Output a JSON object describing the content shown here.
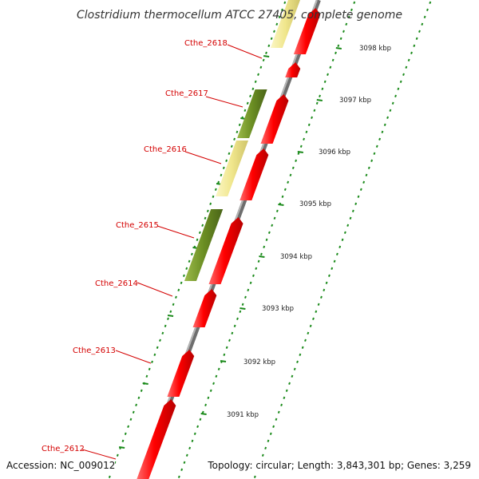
{
  "title": "Clostridium thermocellum ATCC 27405, complete genome",
  "footer": {
    "accession": "Accession: NC_009012",
    "topology": "Topology: circular; Length: 3,843,301 bp; Genes: 3,259"
  },
  "colors": {
    "backbone": "#8c8c8c",
    "forward_cds": "#ff0000",
    "orf_olive": "#6b8e23",
    "orf_khaki": "#f0e68c",
    "label": "#d40000",
    "ticks": "#1a8a1a"
  },
  "genes": [
    {
      "name": "Cthe_2618"
    },
    {
      "name": "Cthe_2617"
    },
    {
      "name": "Cthe_2616"
    },
    {
      "name": "Cthe_2615"
    },
    {
      "name": "Cthe_2614"
    },
    {
      "name": "Cthe_2613"
    },
    {
      "name": "Cthe_2612"
    }
  ],
  "scale_labels": [
    "3098 kbp",
    "3097 kbp",
    "3096 kbp",
    "3095 kbp",
    "3094 kbp",
    "3093 kbp",
    "3092 kbp",
    "3091 kbp"
  ]
}
